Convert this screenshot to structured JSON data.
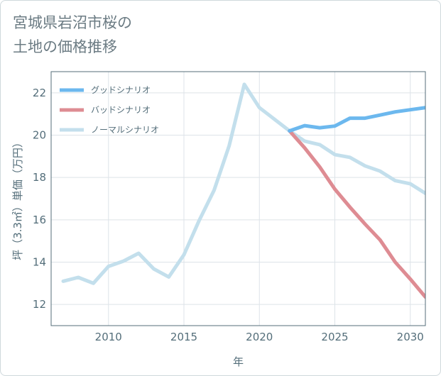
{
  "title": {
    "line1": "宮城県岩沼市桜の",
    "line2": "土地の価格推移"
  },
  "colors": {
    "good": "#6cb8ee",
    "bad": "#de8c93",
    "normal": "#c3dfec",
    "grid": "#dde3e8",
    "axis": "#546e7a"
  },
  "chart_data": {
    "type": "line",
    "xlabel": "年",
    "ylabel": "坪（3.3㎡）単価（万円）",
    "xlim": [
      2006.2,
      2031
    ],
    "ylim": [
      11,
      23
    ],
    "xticks": [
      2010,
      2015,
      2020,
      2025,
      2030
    ],
    "yticks": [
      12,
      14,
      16,
      18,
      20,
      22
    ],
    "grid": true,
    "legend_position": "top-left",
    "series": [
      {
        "name": "グッドシナリオ",
        "color_key": "good",
        "x": [
          2022,
          2023,
          2024,
          2025,
          2026,
          2027,
          2028,
          2029,
          2030,
          2031
        ],
        "y": [
          20.2,
          20.45,
          20.35,
          20.43,
          20.8,
          20.8,
          20.95,
          21.1,
          21.2,
          21.3
        ]
      },
      {
        "name": "バッドシナリオ",
        "color_key": "bad",
        "x": [
          2022,
          2023,
          2024,
          2025,
          2026,
          2027,
          2028,
          2029,
          2030,
          2031
        ],
        "y": [
          20.2,
          19.4,
          18.5,
          17.45,
          16.6,
          15.8,
          15.05,
          14.0,
          13.2,
          12.35
        ]
      },
      {
        "name": "ノーマルシナリオ",
        "color_key": "normal",
        "x": [
          2007,
          2008,
          2009,
          2010,
          2011,
          2012,
          2013,
          2014,
          2015,
          2016,
          2017,
          2018,
          2019,
          2020,
          2021,
          2022,
          2023,
          2024,
          2025,
          2026,
          2027,
          2028,
          2029,
          2030,
          2031
        ],
        "y": [
          13.1,
          13.28,
          13.0,
          13.8,
          14.05,
          14.42,
          13.68,
          13.3,
          14.35,
          15.95,
          17.4,
          19.5,
          22.4,
          21.3,
          20.75,
          20.2,
          19.72,
          19.55,
          19.08,
          18.95,
          18.55,
          18.3,
          17.85,
          17.7,
          17.25
        ]
      }
    ]
  }
}
